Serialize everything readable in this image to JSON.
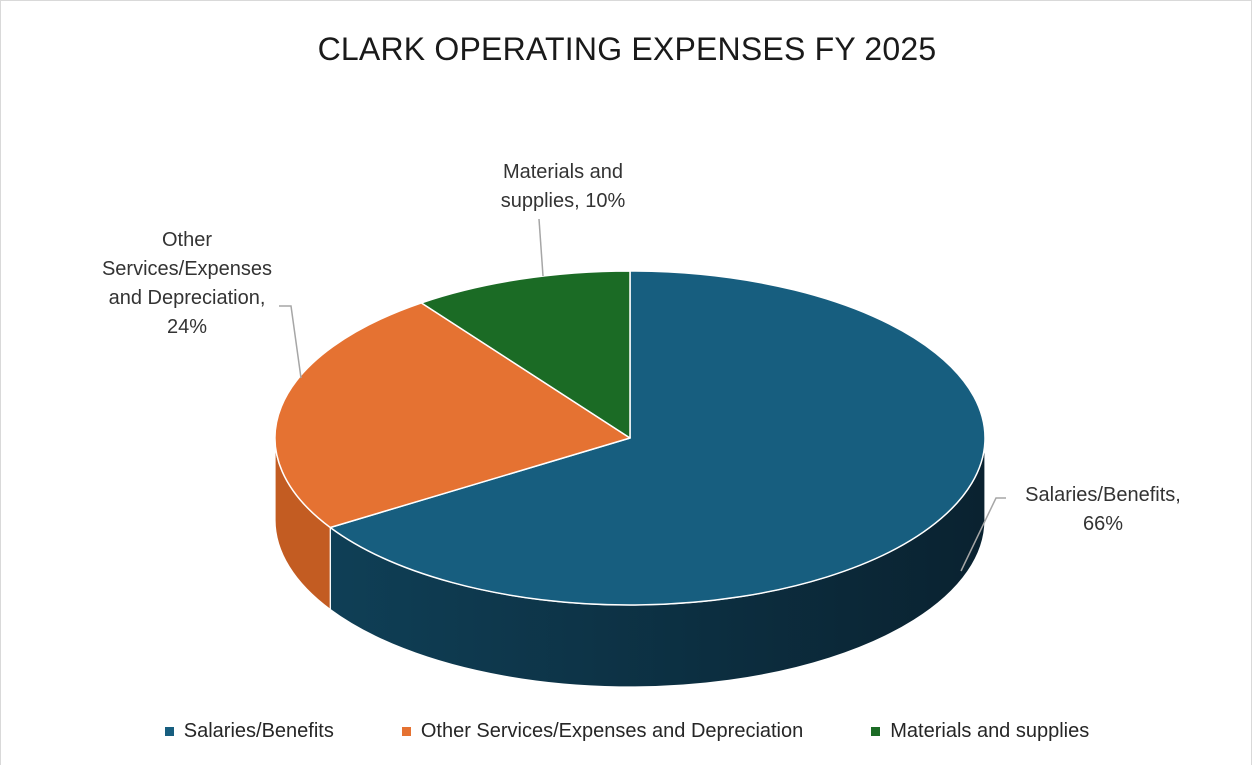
{
  "chart_data": {
    "type": "pie",
    "title": "CLARK OPERATING EXPENSES FY 2025",
    "categories": [
      "Salaries/Benefits",
      "Other Services/Expenses and Depreciation",
      "Materials and supplies"
    ],
    "values": [
      66,
      24,
      10
    ],
    "value_labels": [
      "66%",
      "24%",
      "10%"
    ],
    "data_labels": [
      [
        "Salaries/Benefits,",
        "66%"
      ],
      [
        "Other",
        "Services/Expenses",
        "and Depreciation,",
        "24%"
      ],
      [
        "Materials and",
        "supplies, 10%"
      ]
    ],
    "colors": [
      "#175e7f",
      "#e57232",
      "#1b6b25"
    ],
    "side_colors": [
      "#0f3f56",
      "#c35c22",
      "#124b1a"
    ],
    "legend_position": "bottom",
    "style": "3d-pie"
  }
}
